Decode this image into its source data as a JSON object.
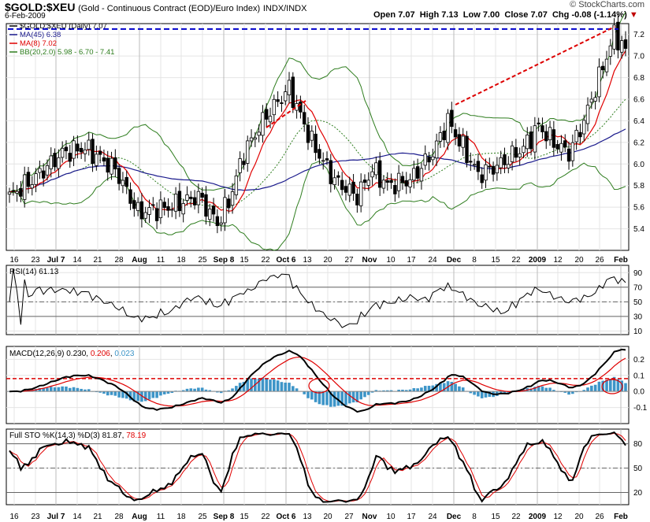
{
  "header": {
    "symbol": "$GOLD:$XEU",
    "description": "(Gold - Continuous Contract (EOD)/Euro Index)",
    "exchange": "INDX/INDX",
    "date": "6-Feb-2009",
    "open_label": "Open",
    "open": "7.07",
    "high_label": "High",
    "high": "7.13",
    "low_label": "Low",
    "low": "7.00",
    "close_label": "Close",
    "close": "7.07",
    "chg_label": "Chg",
    "chg": "-0.08 (-1.14%)",
    "logo": "© StockCharts.com"
  },
  "colors": {
    "price": "#000000",
    "ma45": "#1a1a8c",
    "ma8": "#e00000",
    "bb": "#2e7d1e",
    "macd_hist": "#3d95c8",
    "trend_dash": "#dd0000",
    "resistance": "#0000cc"
  },
  "chart_data": [
    {
      "type": "candlestick",
      "legend": [
        {
          "text": "$GOLD:$XEU (Daily) 7.07",
          "color": "#000000"
        },
        {
          "text": "MA(45) 6.38",
          "color": "#1a1a8c"
        },
        {
          "text": "MA(8) 7.02",
          "color": "#e00000"
        },
        {
          "text": "BB(20,2.0) 5.98 - 6.70 - 7.41",
          "color": "#2e7d1e"
        }
      ],
      "ylim": [
        5.2,
        7.3
      ],
      "yticks": [
        5.4,
        5.6,
        5.8,
        6.0,
        6.2,
        6.4,
        6.6,
        6.8,
        7.0,
        7.2
      ],
      "x_tick_labels": [
        "16",
        "23",
        "Jul 7",
        "14",
        "21",
        "28",
        "Aug",
        "11",
        "18",
        "25",
        "Sep 8",
        "15",
        "22",
        "Oct 6",
        "13",
        "20",
        "27",
        "Nov",
        "10",
        "17",
        "24",
        "Dec",
        "8",
        "15",
        "22",
        "2009",
        "12",
        "20",
        "26",
        "Feb"
      ],
      "price_anchors": [
        [
          0,
          5.7
        ],
        [
          6,
          5.85
        ],
        [
          14,
          6.1
        ],
        [
          20,
          6.15
        ],
        [
          28,
          5.95
        ],
        [
          34,
          5.55
        ],
        [
          42,
          5.6
        ],
        [
          50,
          5.7
        ],
        [
          55,
          5.45
        ],
        [
          58,
          5.65
        ],
        [
          62,
          6.1
        ],
        [
          68,
          6.45
        ],
        [
          74,
          6.7
        ],
        [
          80,
          6.2
        ],
        [
          86,
          5.85
        ],
        [
          92,
          5.7
        ],
        [
          96,
          5.95
        ],
        [
          100,
          5.8
        ],
        [
          106,
          5.85
        ],
        [
          112,
          6.1
        ],
        [
          116,
          6.4
        ],
        [
          120,
          6.15
        ],
        [
          124,
          5.9
        ],
        [
          130,
          6.0
        ],
        [
          136,
          6.15
        ],
        [
          140,
          6.35
        ],
        [
          144,
          6.2
        ],
        [
          148,
          6.1
        ],
        [
          152,
          6.4
        ],
        [
          156,
          6.8
        ],
        [
          160,
          7.2
        ],
        [
          163,
          7.07
        ]
      ],
      "annotations": [
        "dashed red uptrend lines",
        "dashed blue resistance at 7.25"
      ]
    },
    {
      "type": "line",
      "title": "RSI(14) 61.13",
      "ylim": [
        5,
        100
      ],
      "yticks": [
        10,
        30,
        50,
        70,
        90
      ],
      "reference_lines": [
        30,
        50,
        70
      ]
    },
    {
      "type": "line+bar",
      "title": "MACD(12,26,9)",
      "values_text": {
        "macd": "0.230",
        "signal": "0.206",
        "hist": "0.023"
      },
      "ylim": [
        -0.2,
        0.28
      ],
      "yticks": [
        -0.1,
        0.0,
        0.1,
        0.2
      ],
      "reference_line": 0.08
    },
    {
      "type": "line",
      "title": "Full STO %K(14,3) %D(3)",
      "values_text": {
        "k": "81.87",
        "d": "78.19"
      },
      "ylim": [
        5,
        98
      ],
      "yticks": [
        20,
        50,
        80
      ],
      "reference_lines": [
        20,
        50,
        80
      ]
    }
  ]
}
